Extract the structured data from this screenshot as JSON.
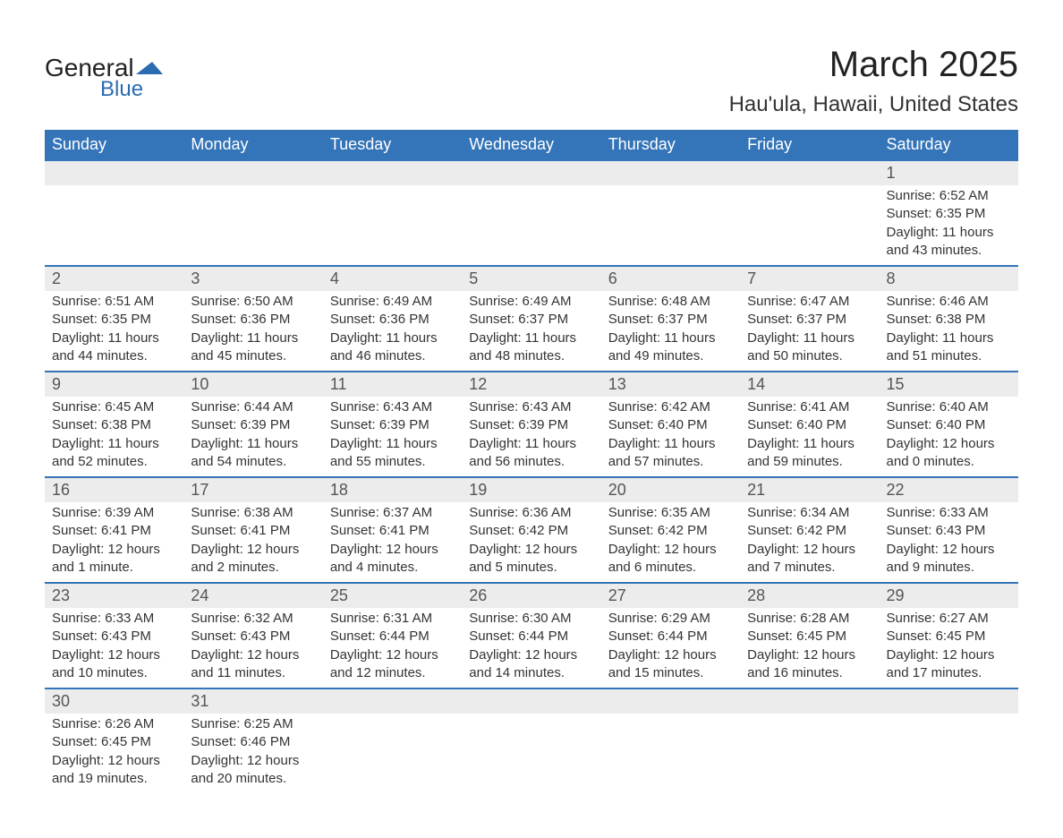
{
  "brand": {
    "word1": "General",
    "word2": "Blue",
    "accent_color": "#2b6cb0"
  },
  "title": "March 2025",
  "location": "Hau'ula, Hawaii, United States",
  "colors": {
    "header_bg": "#3474b8",
    "header_text": "#ffffff",
    "daynum_bg": "#ececec",
    "row_border": "#3474b8",
    "body_text": "#333333",
    "page_bg": "#ffffff"
  },
  "typography": {
    "title_fontsize": 40,
    "location_fontsize": 24,
    "weekday_fontsize": 18,
    "daynum_fontsize": 18,
    "detail_fontsize": 15
  },
  "weekdays": [
    "Sunday",
    "Monday",
    "Tuesday",
    "Wednesday",
    "Thursday",
    "Friday",
    "Saturday"
  ],
  "weeks": [
    [
      null,
      null,
      null,
      null,
      null,
      null,
      {
        "n": "1",
        "sunrise": "Sunrise: 6:52 AM",
        "sunset": "Sunset: 6:35 PM",
        "daylight": "Daylight: 11 hours and 43 minutes."
      }
    ],
    [
      {
        "n": "2",
        "sunrise": "Sunrise: 6:51 AM",
        "sunset": "Sunset: 6:35 PM",
        "daylight": "Daylight: 11 hours and 44 minutes."
      },
      {
        "n": "3",
        "sunrise": "Sunrise: 6:50 AM",
        "sunset": "Sunset: 6:36 PM",
        "daylight": "Daylight: 11 hours and 45 minutes."
      },
      {
        "n": "4",
        "sunrise": "Sunrise: 6:49 AM",
        "sunset": "Sunset: 6:36 PM",
        "daylight": "Daylight: 11 hours and 46 minutes."
      },
      {
        "n": "5",
        "sunrise": "Sunrise: 6:49 AM",
        "sunset": "Sunset: 6:37 PM",
        "daylight": "Daylight: 11 hours and 48 minutes."
      },
      {
        "n": "6",
        "sunrise": "Sunrise: 6:48 AM",
        "sunset": "Sunset: 6:37 PM",
        "daylight": "Daylight: 11 hours and 49 minutes."
      },
      {
        "n": "7",
        "sunrise": "Sunrise: 6:47 AM",
        "sunset": "Sunset: 6:37 PM",
        "daylight": "Daylight: 11 hours and 50 minutes."
      },
      {
        "n": "8",
        "sunrise": "Sunrise: 6:46 AM",
        "sunset": "Sunset: 6:38 PM",
        "daylight": "Daylight: 11 hours and 51 minutes."
      }
    ],
    [
      {
        "n": "9",
        "sunrise": "Sunrise: 6:45 AM",
        "sunset": "Sunset: 6:38 PM",
        "daylight": "Daylight: 11 hours and 52 minutes."
      },
      {
        "n": "10",
        "sunrise": "Sunrise: 6:44 AM",
        "sunset": "Sunset: 6:39 PM",
        "daylight": "Daylight: 11 hours and 54 minutes."
      },
      {
        "n": "11",
        "sunrise": "Sunrise: 6:43 AM",
        "sunset": "Sunset: 6:39 PM",
        "daylight": "Daylight: 11 hours and 55 minutes."
      },
      {
        "n": "12",
        "sunrise": "Sunrise: 6:43 AM",
        "sunset": "Sunset: 6:39 PM",
        "daylight": "Daylight: 11 hours and 56 minutes."
      },
      {
        "n": "13",
        "sunrise": "Sunrise: 6:42 AM",
        "sunset": "Sunset: 6:40 PM",
        "daylight": "Daylight: 11 hours and 57 minutes."
      },
      {
        "n": "14",
        "sunrise": "Sunrise: 6:41 AM",
        "sunset": "Sunset: 6:40 PM",
        "daylight": "Daylight: 11 hours and 59 minutes."
      },
      {
        "n": "15",
        "sunrise": "Sunrise: 6:40 AM",
        "sunset": "Sunset: 6:40 PM",
        "daylight": "Daylight: 12 hours and 0 minutes."
      }
    ],
    [
      {
        "n": "16",
        "sunrise": "Sunrise: 6:39 AM",
        "sunset": "Sunset: 6:41 PM",
        "daylight": "Daylight: 12 hours and 1 minute."
      },
      {
        "n": "17",
        "sunrise": "Sunrise: 6:38 AM",
        "sunset": "Sunset: 6:41 PM",
        "daylight": "Daylight: 12 hours and 2 minutes."
      },
      {
        "n": "18",
        "sunrise": "Sunrise: 6:37 AM",
        "sunset": "Sunset: 6:41 PM",
        "daylight": "Daylight: 12 hours and 4 minutes."
      },
      {
        "n": "19",
        "sunrise": "Sunrise: 6:36 AM",
        "sunset": "Sunset: 6:42 PM",
        "daylight": "Daylight: 12 hours and 5 minutes."
      },
      {
        "n": "20",
        "sunrise": "Sunrise: 6:35 AM",
        "sunset": "Sunset: 6:42 PM",
        "daylight": "Daylight: 12 hours and 6 minutes."
      },
      {
        "n": "21",
        "sunrise": "Sunrise: 6:34 AM",
        "sunset": "Sunset: 6:42 PM",
        "daylight": "Daylight: 12 hours and 7 minutes."
      },
      {
        "n": "22",
        "sunrise": "Sunrise: 6:33 AM",
        "sunset": "Sunset: 6:43 PM",
        "daylight": "Daylight: 12 hours and 9 minutes."
      }
    ],
    [
      {
        "n": "23",
        "sunrise": "Sunrise: 6:33 AM",
        "sunset": "Sunset: 6:43 PM",
        "daylight": "Daylight: 12 hours and 10 minutes."
      },
      {
        "n": "24",
        "sunrise": "Sunrise: 6:32 AM",
        "sunset": "Sunset: 6:43 PM",
        "daylight": "Daylight: 12 hours and 11 minutes."
      },
      {
        "n": "25",
        "sunrise": "Sunrise: 6:31 AM",
        "sunset": "Sunset: 6:44 PM",
        "daylight": "Daylight: 12 hours and 12 minutes."
      },
      {
        "n": "26",
        "sunrise": "Sunrise: 6:30 AM",
        "sunset": "Sunset: 6:44 PM",
        "daylight": "Daylight: 12 hours and 14 minutes."
      },
      {
        "n": "27",
        "sunrise": "Sunrise: 6:29 AM",
        "sunset": "Sunset: 6:44 PM",
        "daylight": "Daylight: 12 hours and 15 minutes."
      },
      {
        "n": "28",
        "sunrise": "Sunrise: 6:28 AM",
        "sunset": "Sunset: 6:45 PM",
        "daylight": "Daylight: 12 hours and 16 minutes."
      },
      {
        "n": "29",
        "sunrise": "Sunrise: 6:27 AM",
        "sunset": "Sunset: 6:45 PM",
        "daylight": "Daylight: 12 hours and 17 minutes."
      }
    ],
    [
      {
        "n": "30",
        "sunrise": "Sunrise: 6:26 AM",
        "sunset": "Sunset: 6:45 PM",
        "daylight": "Daylight: 12 hours and 19 minutes."
      },
      {
        "n": "31",
        "sunrise": "Sunrise: 6:25 AM",
        "sunset": "Sunset: 6:46 PM",
        "daylight": "Daylight: 12 hours and 20 minutes."
      },
      null,
      null,
      null,
      null,
      null
    ]
  ]
}
